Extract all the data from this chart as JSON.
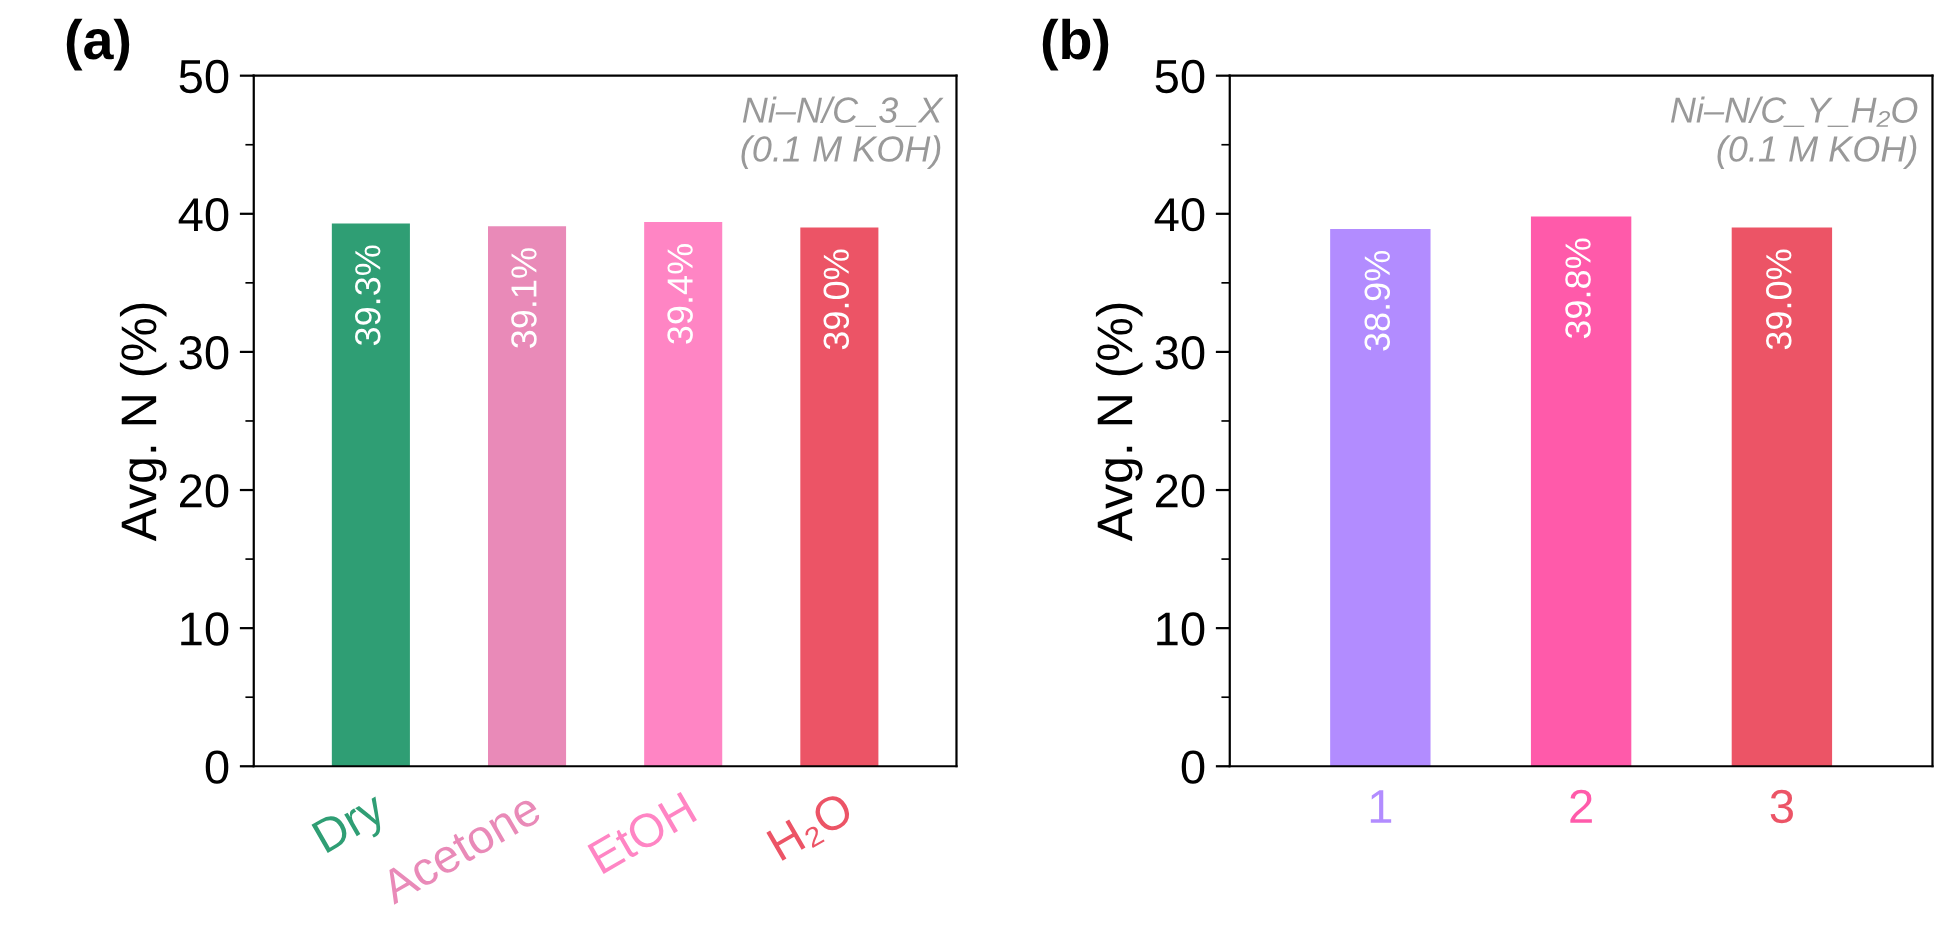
{
  "chart_data": [
    {
      "type": "bar",
      "title": "(a)",
      "ylabel": "Avg. N (%)",
      "annotations": [
        "Ni–N/C_3_X\n(0.1 M KOH)"
      ],
      "categories": [
        "Dry",
        "Acetone",
        "EtOH",
        "H₂O"
      ],
      "values": [
        39.3,
        39.1,
        39.4,
        39.0
      ],
      "colors": [
        "#2f9e74",
        "#e98ab8",
        "#ff85c4",
        "#ec5466"
      ],
      "value_labels": [
        "39.3%",
        "39.1%",
        "39.4%",
        "39.0%"
      ],
      "ylim": [
        0,
        50
      ],
      "yticks": [
        0,
        {
          "value": 5,
          "label": null
        },
        10,
        {
          "value": 15,
          "label": null
        },
        20,
        {
          "value": 25,
          "label": null
        },
        30,
        {
          "value": 35,
          "label": null
        },
        40,
        {
          "value": 45,
          "label": null
        },
        50
      ],
      "grid": false,
      "legend": false
    },
    {
      "type": "bar",
      "title": "(b)",
      "ylabel": "Avg. N (%)",
      "annotations": [
        "Ni–N/C_Y_H₂O\n(0.1 M KOH)"
      ],
      "categories": [
        "1",
        "2",
        "3"
      ],
      "values": [
        38.9,
        39.8,
        39.0
      ],
      "colors": [
        "#b28cff",
        "#ff5aaa",
        "#ec5466"
      ],
      "value_labels": [
        "38.9%",
        "39.8%",
        "39.0%"
      ],
      "ylim": [
        0,
        50
      ],
      "yticks": [
        0,
        {
          "value": 5,
          "label": null
        },
        10,
        {
          "value": 15,
          "label": null
        },
        20,
        {
          "value": 25,
          "label": null
        },
        30,
        {
          "value": 35,
          "label": null
        },
        40,
        {
          "value": 45,
          "label": null
        },
        50
      ],
      "grid": false,
      "legend": false
    }
  ]
}
